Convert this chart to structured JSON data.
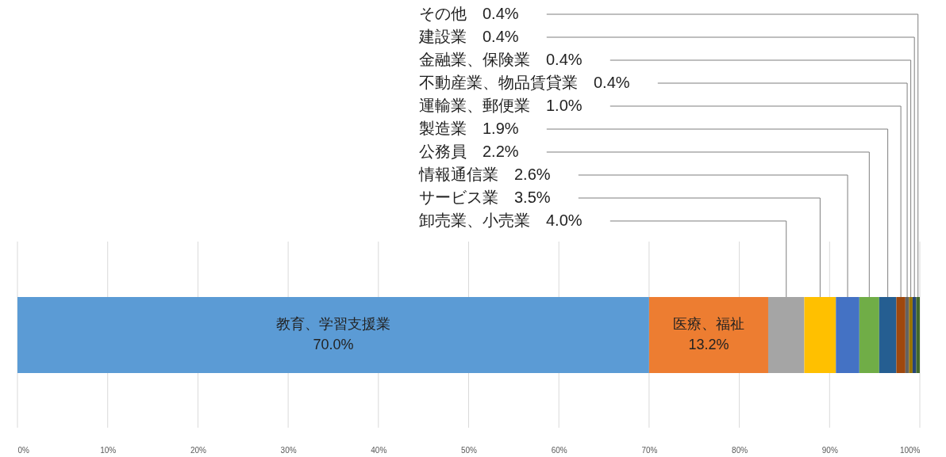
{
  "chart_data": {
    "type": "bar",
    "orientation": "horizontal",
    "stacked": true,
    "categories": [
      null
    ],
    "series": [
      {
        "name": "教育、学習支援業",
        "color": "#5b9bd5",
        "values": [
          70.0
        ],
        "value_labels": [
          "70.0%"
        ]
      },
      {
        "name": "医療、福祉",
        "color": "#ed7d31",
        "values": [
          13.2
        ],
        "value_labels": [
          "13.2%"
        ]
      },
      {
        "name": "卸売業、小売業",
        "color": "#a5a5a5",
        "values": [
          4.0
        ],
        "value_labels": [
          "4.0%"
        ]
      },
      {
        "name": "サービス業",
        "color": "#ffc000",
        "values": [
          3.5
        ],
        "value_labels": [
          "3.5%"
        ]
      },
      {
        "name": "情報通信業",
        "color": "#4472c4",
        "values": [
          2.6
        ],
        "value_labels": [
          "2.6%"
        ]
      },
      {
        "name": "公務員",
        "color": "#70ad47",
        "values": [
          2.2
        ],
        "value_labels": [
          "2.2%"
        ]
      },
      {
        "name": "製造業",
        "color": "#255e91",
        "values": [
          1.9
        ],
        "value_labels": [
          "1.9%"
        ]
      },
      {
        "name": "運輸業、郵便業",
        "color": "#9e480e",
        "values": [
          1.0
        ],
        "value_labels": [
          "1.0%"
        ]
      },
      {
        "name": "不動産業、物品賃貸業",
        "color": "#636363",
        "values": [
          0.4
        ],
        "value_labels": [
          "0.4%"
        ]
      },
      {
        "name": "金融業、保険業",
        "color": "#997300",
        "values": [
          0.4
        ],
        "value_labels": [
          "0.4%"
        ]
      },
      {
        "name": "建設業",
        "color": "#264478",
        "values": [
          0.4
        ],
        "value_labels": [
          "0.4%"
        ]
      },
      {
        "name": "その他",
        "color": "#43682b",
        "values": [
          0.4
        ],
        "value_labels": [
          "0.4%"
        ]
      }
    ],
    "xlim": [
      0,
      100
    ],
    "xticks": [
      {
        "value": 0,
        "label": "0%"
      },
      {
        "value": 10,
        "label": "10%"
      },
      {
        "value": 20,
        "label": "20%"
      },
      {
        "value": 30,
        "label": "30%"
      },
      {
        "value": 40,
        "label": "40%"
      },
      {
        "value": 50,
        "label": "50%"
      },
      {
        "value": 60,
        "label": "60%"
      },
      {
        "value": 70,
        "label": "70%"
      },
      {
        "value": 80,
        "label": "80%"
      },
      {
        "value": 90,
        "label": "90%"
      },
      {
        "value": 100,
        "label": "100%"
      }
    ],
    "grid": "x"
  }
}
